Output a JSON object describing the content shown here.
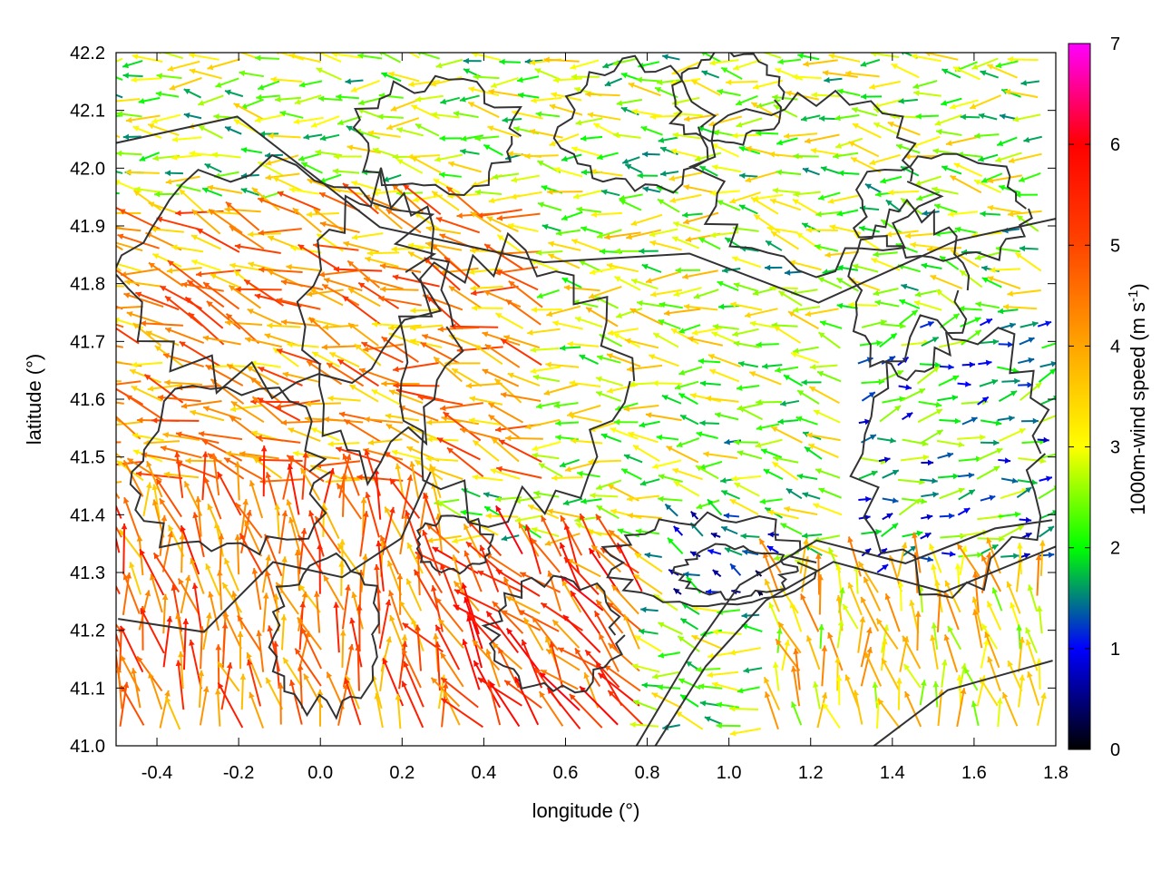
{
  "chart_data": {
    "type": "vector-field",
    "xlabel": "longitude (°)",
    "ylabel": "latitude (°)",
    "colorbar_label_main": "1000m-wind speed (m s",
    "colorbar_label_sup": "-1",
    "colorbar_label_end": ")",
    "xlim": [
      -0.5,
      1.8
    ],
    "ylim": [
      41.0,
      42.2
    ],
    "x_ticks": [
      -0.4,
      -0.2,
      0.0,
      0.2,
      0.4,
      0.6,
      0.8,
      1.0,
      1.2,
      1.4,
      1.6,
      1.8
    ],
    "x_tick_labels": [
      "-0.4",
      "-0.2",
      "0.0",
      "0.2",
      "0.4",
      "0.6",
      "0.8",
      "1.0",
      "1.2",
      "1.4",
      "1.6",
      "1.8"
    ],
    "y_ticks": [
      41.0,
      41.1,
      41.2,
      41.3,
      41.4,
      41.5,
      41.6,
      41.7,
      41.8,
      41.9,
      42.0,
      42.1,
      42.2
    ],
    "y_tick_labels": [
      "41.0",
      "41.1",
      "41.2",
      "41.3",
      "41.4",
      "41.5",
      "41.6",
      "41.7",
      "41.8",
      "41.9",
      "42.0",
      "42.1",
      "42.2"
    ],
    "colorbar_range": [
      0,
      7
    ],
    "colorbar_ticks": [
      0,
      1,
      2,
      3,
      4,
      5,
      6,
      7
    ],
    "colorbar_tick_labels": [
      "0",
      "1",
      "2",
      "3",
      "4",
      "5",
      "6",
      "7"
    ],
    "colormap": [
      {
        "value": 0,
        "color": "#000000"
      },
      {
        "value": 1,
        "color": "#0000ff"
      },
      {
        "value": 2,
        "color": "#00ff00"
      },
      {
        "value": 3,
        "color": "#ffff00"
      },
      {
        "value": 4,
        "color": "#ffa500"
      },
      {
        "value": 5,
        "color": "#ff4500"
      },
      {
        "value": 6,
        "color": "#ff0000"
      },
      {
        "value": 7,
        "color": "#ff00ff"
      }
    ],
    "contour_color": "#333333",
    "grid": false,
    "colorbar_position": "right",
    "wind_regions": [
      {
        "lon": [
          -0.5,
          0.3
        ],
        "lat": [
          41.0,
          41.45
        ],
        "speed": 4.6,
        "u": -0.2,
        "v": 1.0
      },
      {
        "lon": [
          -0.5,
          0.55
        ],
        "lat": [
          41.45,
          41.95
        ],
        "speed": 4.2,
        "u": -1.0,
        "v": 0.3
      },
      {
        "lon": [
          0.3,
          0.8
        ],
        "lat": [
          41.0,
          41.35
        ],
        "speed": 5.0,
        "u": -0.5,
        "v": 0.6
      },
      {
        "lon": [
          0.55,
          1.0
        ],
        "lat": [
          41.35,
          41.95
        ],
        "speed": 2.8,
        "u": -1.0,
        "v": 0.1
      },
      {
        "lon": [
          0.85,
          1.15
        ],
        "lat": [
          41.25,
          41.4
        ],
        "speed": 1.0,
        "u": -0.6,
        "v": 0.3
      },
      {
        "lon": [
          1.1,
          1.8
        ],
        "lat": [
          41.0,
          41.3
        ],
        "speed": 3.4,
        "u": -0.2,
        "v": 1.0
      },
      {
        "lon": [
          1.3,
          1.8
        ],
        "lat": [
          41.3,
          41.75
        ],
        "speed": 1.8,
        "u": 0.8,
        "v": 0.2
      },
      {
        "lon": [
          -0.5,
          1.8
        ],
        "lat": [
          41.95,
          42.2
        ],
        "speed": 2.6,
        "u": -1.0,
        "v": 0.05
      }
    ]
  }
}
